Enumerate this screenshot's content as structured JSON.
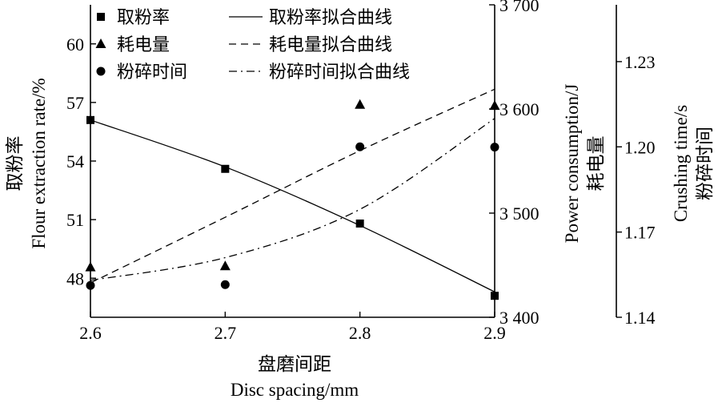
{
  "chart_data": {
    "type": "scatter",
    "x": [
      2.6,
      2.7,
      2.8,
      2.9
    ],
    "x_ticks": [
      "2.6",
      "2.7",
      "2.8",
      "2.9"
    ],
    "xlim": [
      2.6,
      2.9
    ],
    "xlabel_cn": "盘磨间距",
    "xlabel_en": "Disc spacing/mm",
    "y_left": {
      "label_cn": "取粉率",
      "label_en": "Flour extraction rate/%",
      "lim": [
        46.0,
        62.0
      ],
      "ticks": [
        "48",
        "51",
        "54",
        "57",
        "60"
      ]
    },
    "y_right1": {
      "label_en": "Power consumption/J",
      "label_cn": "耗电量",
      "lim": [
        3400,
        3700
      ],
      "ticks": [
        "3 400",
        "3 500",
        "3 600",
        "3 700"
      ]
    },
    "y_right2": {
      "label_en": "Crushing time/s",
      "label_cn": "粉碎时间",
      "lim": [
        1.14,
        1.25
      ],
      "ticks": [
        "1.14",
        "1.17",
        "1.20",
        "1.23"
      ]
    },
    "series": [
      {
        "name": "取粉率",
        "axis": "left",
        "marker": "square",
        "values": [
          56.1,
          53.6,
          50.8,
          47.1
        ],
        "fit_name": "取粉率拟合曲线",
        "fit_style": "solid",
        "fit_values": [
          56.1,
          53.7,
          50.7,
          47.3
        ]
      },
      {
        "name": "耗电量",
        "axis": "right1",
        "marker": "triangle",
        "values": [
          3448,
          3449,
          3604,
          3603
        ],
        "fit_name": "耗电量拟合曲线",
        "fit_style": "dashed",
        "fit_values": [
          3433,
          3496,
          3560,
          3619
        ]
      },
      {
        "name": "粉碎时间",
        "axis": "right2",
        "marker": "circle",
        "values": [
          1.1512,
          1.1515,
          1.2,
          1.1999
        ],
        "fit_name": "粉碎时间拟合曲线",
        "fit_style": "dash-dot",
        "fit_values": [
          1.153,
          1.161,
          1.178,
          1.21
        ]
      }
    ],
    "legend_position": "top-left"
  }
}
